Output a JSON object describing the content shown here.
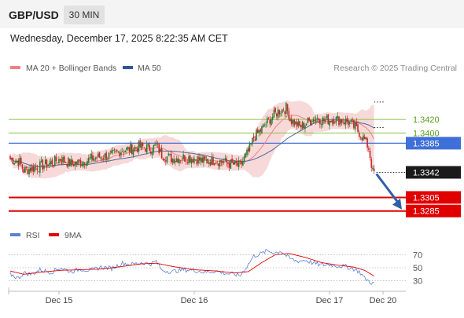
{
  "header": {
    "symbol": "GBP/USD",
    "timeframe": "30 MIN",
    "datetime": "Wednesday, December 17, 2025 8:22:35 AM CET"
  },
  "legend": {
    "items": [
      {
        "label": "MA 20 + Bollinger Bands",
        "color": "#f08080"
      },
      {
        "label": "MA 50",
        "color": "#2f5597"
      }
    ],
    "credit": "Research © 2025 Trading Central"
  },
  "colors": {
    "up_candle": "#2e7d32",
    "down_candle": "#c62828",
    "bollinger_fill": "#f6cccc",
    "ma20": "#f08080",
    "ma50": "#4a6aa5",
    "resistance": "#8bc34a",
    "pivot": "#3f6fd8",
    "support": "#e10000",
    "last_price_box": "#1a1a1a",
    "rsi": "#5b7fd9",
    "rsi_ma": "#e10000",
    "arrow": "#2f5fa8"
  },
  "chart_data": [
    {
      "type": "candlestick",
      "title": "GBP/USD 30 MIN",
      "x_tick_labels": [
        "Dec 15",
        "Dec 16",
        "Dec 17",
        "Dec 20"
      ],
      "y_range": [
        1.3265,
        1.3485
      ],
      "levels": [
        {
          "label": "1.3420",
          "value": 1.342,
          "kind": "resistance"
        },
        {
          "label": "1.3400",
          "value": 1.34,
          "kind": "resistance"
        },
        {
          "label": "1.3385",
          "value": 1.3385,
          "kind": "pivot"
        },
        {
          "label": "1.3342",
          "value": 1.3342,
          "kind": "last"
        },
        {
          "label": "1.3305",
          "value": 1.3305,
          "kind": "support"
        },
        {
          "label": "1.3285",
          "value": 1.3285,
          "kind": "support"
        }
      ],
      "scenario_arrow": {
        "from": 1.3342,
        "to": 1.3285
      },
      "price_path": [
        [
          0,
          1.3362
        ],
        [
          7,
          1.3357
        ],
        [
          10,
          1.3345
        ],
        [
          16,
          1.3348
        ],
        [
          22,
          1.3351
        ],
        [
          30,
          1.3356
        ],
        [
          37,
          1.3362
        ],
        [
          45,
          1.3355
        ],
        [
          52,
          1.3357
        ],
        [
          60,
          1.3362
        ],
        [
          67,
          1.3365
        ],
        [
          75,
          1.3367
        ],
        [
          83,
          1.3375
        ],
        [
          90,
          1.3377
        ],
        [
          97,
          1.338
        ],
        [
          104,
          1.3377
        ],
        [
          108,
          1.3381
        ],
        [
          112,
          1.3368
        ],
        [
          120,
          1.3362
        ],
        [
          128,
          1.3364
        ],
        [
          136,
          1.3363
        ],
        [
          144,
          1.3358
        ],
        [
          152,
          1.336
        ],
        [
          160,
          1.3356
        ],
        [
          166,
          1.3353
        ],
        [
          170,
          1.3352
        ],
        [
          176,
          1.3372
        ],
        [
          180,
          1.3393
        ],
        [
          186,
          1.3406
        ],
        [
          192,
          1.3421
        ],
        [
          198,
          1.3432
        ],
        [
          204,
          1.3437
        ],
        [
          208,
          1.3418
        ],
        [
          214,
          1.3409
        ],
        [
          220,
          1.3416
        ],
        [
          226,
          1.3423
        ],
        [
          232,
          1.3418
        ],
        [
          238,
          1.3421
        ],
        [
          244,
          1.3419
        ],
        [
          250,
          1.3416
        ],
        [
          255,
          1.3408
        ],
        [
          258,
          1.3401
        ],
        [
          262,
          1.339
        ],
        [
          265,
          1.3378
        ],
        [
          268,
          1.3342
        ]
      ]
    },
    {
      "type": "line",
      "title": "RSI",
      "series": [
        {
          "name": "RSI",
          "color": "#5b7fd9"
        },
        {
          "name": "9MA",
          "color": "#e10000"
        }
      ],
      "y_ticks": [
        70,
        50,
        30
      ],
      "y_range": [
        15,
        85
      ],
      "rsi_path": [
        [
          0,
          40
        ],
        [
          6,
          34
        ],
        [
          10,
          42
        ],
        [
          16,
          40
        ],
        [
          22,
          47
        ],
        [
          30,
          43
        ],
        [
          37,
          50
        ],
        [
          45,
          44
        ],
        [
          52,
          48
        ],
        [
          60,
          46
        ],
        [
          67,
          51
        ],
        [
          75,
          49
        ],
        [
          83,
          57
        ],
        [
          90,
          55
        ],
        [
          97,
          58
        ],
        [
          104,
          56
        ],
        [
          108,
          60
        ],
        [
          112,
          46
        ],
        [
          120,
          44
        ],
        [
          128,
          47
        ],
        [
          136,
          46
        ],
        [
          144,
          43
        ],
        [
          152,
          45
        ],
        [
          160,
          41
        ],
        [
          166,
          40
        ],
        [
          170,
          38
        ],
        [
          176,
          55
        ],
        [
          180,
          68
        ],
        [
          186,
          72
        ],
        [
          190,
          76
        ],
        [
          196,
          73
        ],
        [
          200,
          76
        ],
        [
          206,
          65
        ],
        [
          212,
          60
        ],
        [
          218,
          62
        ],
        [
          224,
          57
        ],
        [
          230,
          54
        ],
        [
          236,
          55
        ],
        [
          242,
          53
        ],
        [
          248,
          52
        ],
        [
          254,
          48
        ],
        [
          258,
          44
        ],
        [
          262,
          34
        ],
        [
          266,
          28
        ],
        [
          270,
          24
        ]
      ],
      "rsi_ma_path": [
        [
          0,
          45
        ],
        [
          10,
          40
        ],
        [
          22,
          43
        ],
        [
          37,
          46
        ],
        [
          52,
          47
        ],
        [
          67,
          48
        ],
        [
          83,
          52
        ],
        [
          97,
          56
        ],
        [
          108,
          57
        ],
        [
          120,
          52
        ],
        [
          136,
          47
        ],
        [
          152,
          45
        ],
        [
          166,
          42
        ],
        [
          176,
          44
        ],
        [
          186,
          58
        ],
        [
          196,
          70
        ],
        [
          206,
          72
        ],
        [
          218,
          66
        ],
        [
          230,
          58
        ],
        [
          242,
          54
        ],
        [
          254,
          51
        ],
        [
          262,
          46
        ],
        [
          270,
          36
        ]
      ]
    }
  ]
}
